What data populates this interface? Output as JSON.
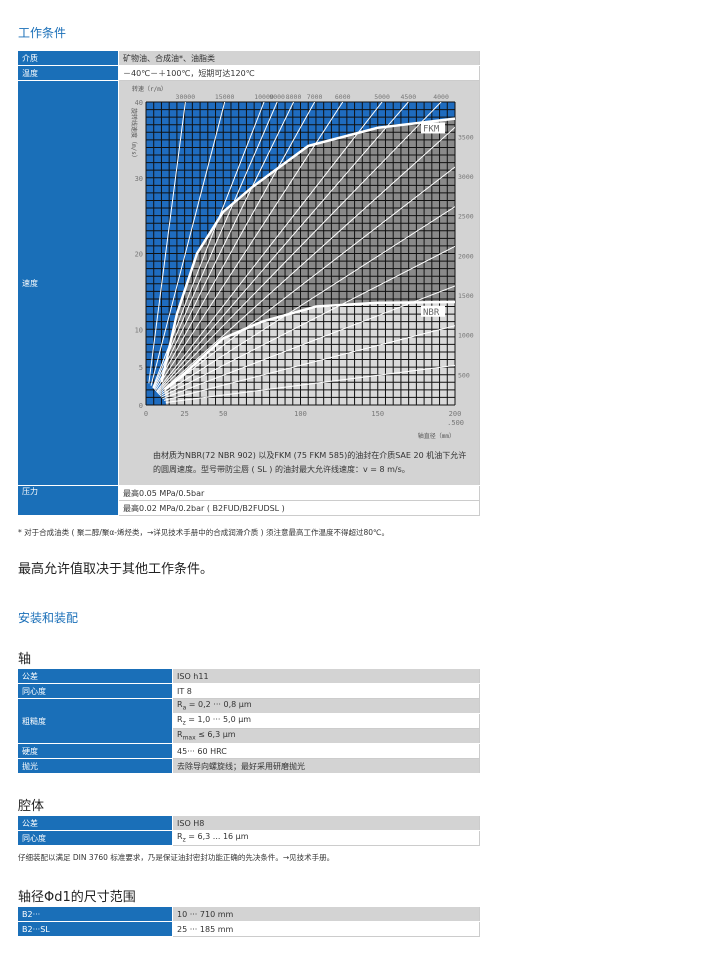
{
  "section1_title": "工作条件",
  "conditions": {
    "medium": {
      "label": "介质",
      "value": "矿物油、合成油*、油脂类"
    },
    "temperature": {
      "label": "温度",
      "value": "－40℃－＋100℃，短期可达120℃"
    },
    "speed": {
      "label": "速度",
      "caption": "由材质为NBR(72 NBR 902) 以及FKM (75 FKM 585)的油封在介质SAE 20 机油下允许的圆周速度。型号带防尘唇 ( SL ) 的油封最大允许线速度：v = 8 m/s。"
    },
    "pressure": {
      "label": "压力",
      "values": [
        "最高0.05 MPa/0.5bar",
        "最高0.02 MPa/0.2bar ( B2FUD/B2FUDSL )"
      ]
    }
  },
  "footnote": "* 对于合成油类 ( 聚二醇/聚α-烯烃类，→详见技术手册中的合成润滑介质 ) 须注意最高工作温度不得超过80℃。",
  "max_note": "最高允许值取决于其他工作条件。",
  "section2_title": "安装和装配",
  "shaft": {
    "title": "轴",
    "rows": [
      {
        "label": "公差",
        "value": "ISO h11"
      },
      {
        "label": "同心度",
        "value": "IT 8"
      },
      {
        "label": "粗糙度",
        "ra": "R",
        "ra_sub": "a",
        "ra_val": " = 0,2 ··· 0,8 μm",
        "rz": "R",
        "rz_sub": "z",
        "rz_val": " = 1,0 ··· 5,0 μm",
        "rmax": "R",
        "rmax_sub": "max",
        "rmax_val": " ≤ 6,3 μm"
      },
      {
        "label": "硬度",
        "value": "45··· 60 HRC"
      },
      {
        "label": "抛光",
        "value": "去除导向螺旋线；最好采用研磨抛光"
      }
    ]
  },
  "housing": {
    "title": "腔体",
    "rows": [
      {
        "label": "公差",
        "value": "ISO H8"
      },
      {
        "label": "同心度",
        "r": "R",
        "r_sub": "z",
        "value": " = 6,3 ... 16 µm"
      }
    ],
    "note": "仔细装配以满足 DIN 3760 标准要求，乃是保证油封密封功能正确的先决条件。→见技术手册。"
  },
  "sizes": {
    "title": "轴径Φd1的尺寸范围",
    "rows": [
      {
        "label": "B2···",
        "value": "10 ··· 710 mm"
      },
      {
        "label": "B2···SL",
        "value": "25 ··· 185 mm"
      }
    ]
  },
  "chart_data": {
    "type": "line",
    "xlabel": "轴直径（mm）",
    "ylabel": "旋转线速度（m/s）",
    "top_label": "转速（r/m）",
    "xlim": [
      0,
      200
    ],
    "ylim": [
      0,
      40
    ],
    "xticks": [
      "0",
      "25",
      "50",
      "100",
      "150",
      "200"
    ],
    "xtick_values": [
      0,
      25,
      50,
      100,
      150,
      200
    ],
    "x_extra_label": ".500",
    "yticks": [
      "0",
      "5",
      "10",
      "20",
      "30",
      "40"
    ],
    "ytick_values": [
      0,
      5,
      10,
      20,
      30,
      40
    ],
    "grid": true,
    "colors": {
      "blue": "#1f6cbf",
      "fkm_region": "#8a8a8a",
      "nbr_region": "#d9d9d9",
      "lines": "#ffffff"
    },
    "rpm_lines": [
      30000,
      15000,
      10000,
      9000,
      8000,
      7000,
      6000,
      5000,
      4500,
      4000,
      3500,
      3000,
      2500,
      2000,
      1500,
      1000,
      500
    ],
    "rpm_labels_top": [
      "30000",
      "15000",
      "10000",
      "9000",
      "8000",
      "7000",
      "6000",
      "5000",
      "4500",
      "4000"
    ],
    "rpm_labels_right": [
      "3500",
      "3000",
      "2500",
      "2000",
      "1500",
      "1000",
      "500"
    ],
    "series": [
      {
        "name": "FKM",
        "x": [
          10,
          20,
          33,
          50,
          69,
          105,
          150,
          200
        ],
        "y": [
          3,
          12,
          20,
          25.5,
          28.8,
          34.2,
          36.6,
          37.8
        ]
      },
      {
        "name": "NBR",
        "x": [
          12,
          25,
          50,
          75,
          110,
          150,
          200
        ],
        "y": [
          2,
          4.2,
          8.8,
          11,
          13,
          13.5,
          13.6
        ]
      }
    ]
  }
}
